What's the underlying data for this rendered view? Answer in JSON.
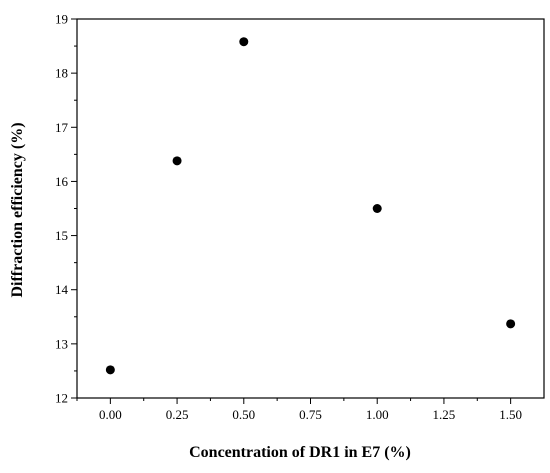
{
  "chart_data": {
    "type": "scatter",
    "title": "",
    "xlabel": "Concentration of DR1 in E7 (%)",
    "ylabel": "Diffraction efficiency (%)",
    "xlim": [
      -0.125,
      1.625
    ],
    "ylim": [
      12,
      19
    ],
    "xticks": [
      "0.00",
      "0.25",
      "0.50",
      "0.75",
      "1.00",
      "1.25",
      "1.50"
    ],
    "yticks": [
      "12",
      "13",
      "14",
      "15",
      "16",
      "17",
      "18",
      "19"
    ],
    "grid": false,
    "legend": "none",
    "marker_color": "#000000",
    "series": [
      {
        "x": [
          0.0,
          0.25,
          0.5,
          1.0,
          1.5
        ],
        "y": [
          12.52,
          16.38,
          18.58,
          15.5,
          13.37
        ]
      }
    ]
  }
}
